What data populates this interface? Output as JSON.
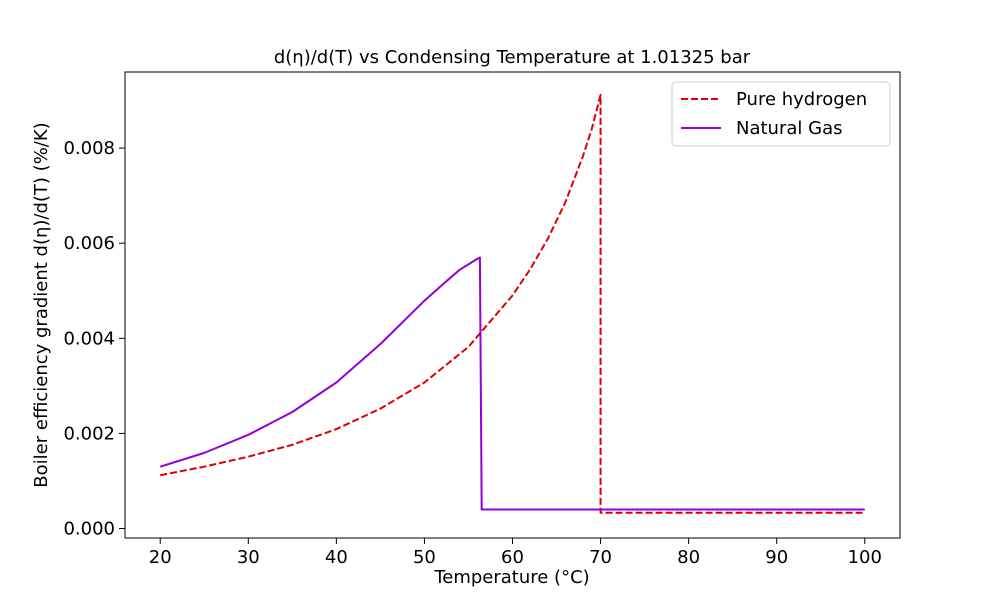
{
  "chart_data": {
    "type": "line",
    "title": "d(η)/d(T) vs Condensing Temperature at 1.01325 bar",
    "xlabel": "Temperature (°C)",
    "ylabel": "Boiler efficiency gradient d(η)/d(T) (%/K)",
    "xlim": [
      16,
      104
    ],
    "ylim": [
      -0.0002,
      0.0096
    ],
    "xticks": [
      20,
      30,
      40,
      50,
      60,
      70,
      80,
      90,
      100
    ],
    "yticks": [
      0.0,
      0.002,
      0.004,
      0.006,
      0.008
    ],
    "ytick_labels": [
      "0.000",
      "0.002",
      "0.004",
      "0.006",
      "0.008"
    ],
    "legend_position": "top-right",
    "grid": false,
    "series": [
      {
        "name": "Pure hydrogen",
        "color": "#dd0000",
        "style": "dashed",
        "x": [
          20,
          25,
          30,
          35,
          40,
          45,
          50,
          55,
          60,
          62,
          64,
          66,
          68,
          69,
          70,
          70,
          100
        ],
        "y": [
          0.00112,
          0.0013,
          0.00151,
          0.00176,
          0.00209,
          0.00252,
          0.00307,
          0.00382,
          0.0049,
          0.00545,
          0.00609,
          0.00686,
          0.00783,
          0.0084,
          0.00912,
          0.00033,
          0.00033
        ]
      },
      {
        "name": "Natural Gas",
        "color": "#9400d3",
        "style": "solid",
        "x": [
          20,
          25,
          30,
          35,
          40,
          45,
          50,
          52,
          54,
          56,
          56.3,
          56.5,
          100
        ],
        "y": [
          0.0013,
          0.00159,
          0.00197,
          0.00245,
          0.00307,
          0.00388,
          0.00479,
          0.00512,
          0.00544,
          0.00567,
          0.0057,
          0.0004,
          0.0004
        ]
      }
    ]
  }
}
